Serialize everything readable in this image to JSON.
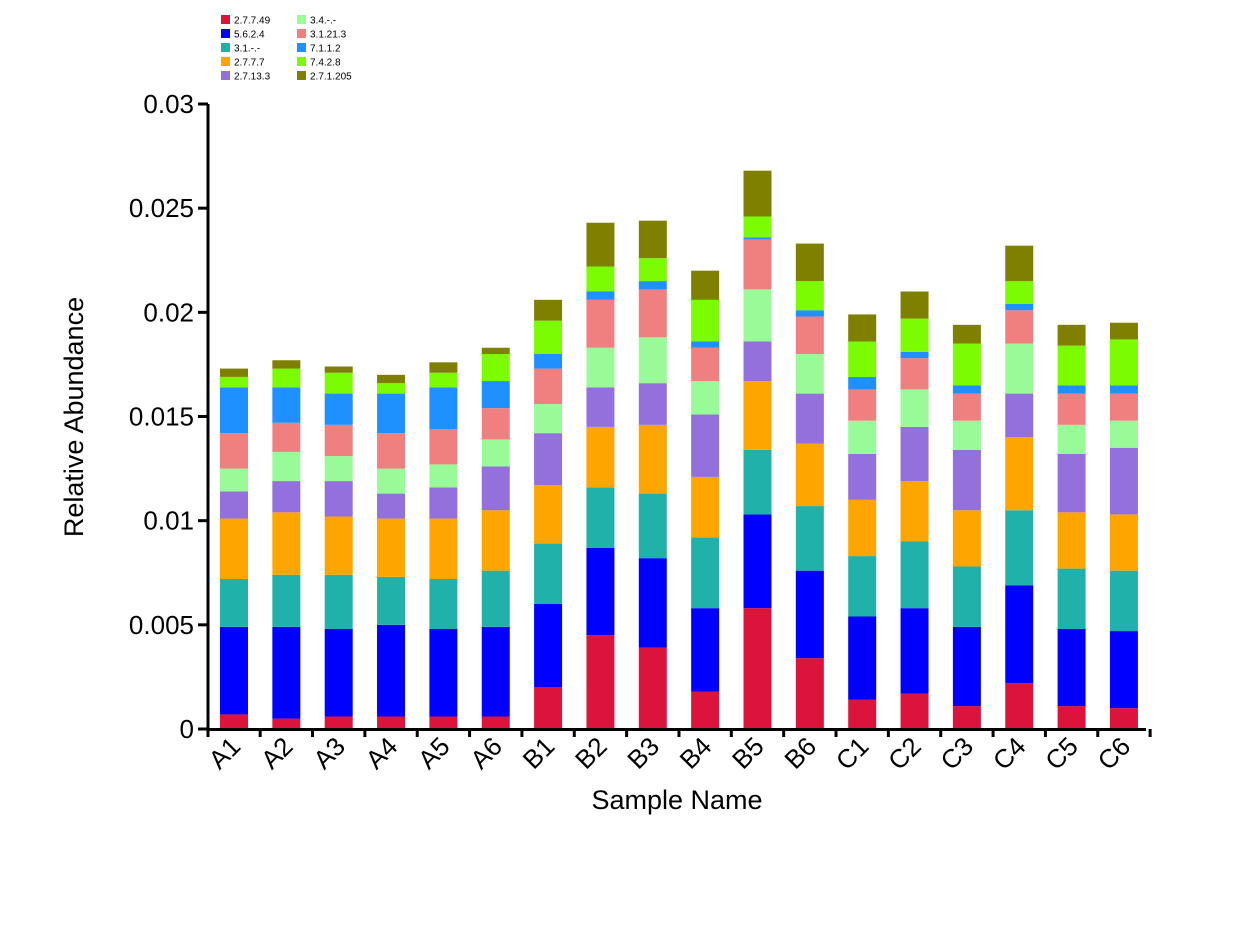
{
  "chart_data": {
    "type": "bar",
    "stacked": true,
    "xlabel": "Sample Name",
    "ylabel": "Relative Abundance",
    "ylim": [
      0,
      0.03
    ],
    "yticks": [
      "0",
      "0.005",
      "0.01",
      "0.015",
      "0.02",
      "0.025",
      "0.03"
    ],
    "grid": false,
    "legend_position": "top-left",
    "categories": [
      "A1",
      "A2",
      "A3",
      "A4",
      "A5",
      "A6",
      "B1",
      "B2",
      "B3",
      "B4",
      "B5",
      "B6",
      "C1",
      "C2",
      "C3",
      "C4",
      "C5",
      "C6"
    ],
    "series": [
      {
        "name": "2.7.7.49",
        "color": "#dc143c",
        "values": [
          0.0007,
          0.0005,
          0.0006,
          0.0006,
          0.0006,
          0.0006,
          0.002,
          0.0045,
          0.0039,
          0.0018,
          0.0058,
          0.0034,
          0.0014,
          0.0017,
          0.0011,
          0.0022,
          0.0011,
          0.001
        ]
      },
      {
        "name": "5.6.2.4",
        "color": "#0000ff",
        "values": [
          0.0042,
          0.0044,
          0.0042,
          0.0044,
          0.0042,
          0.0043,
          0.004,
          0.0042,
          0.0043,
          0.004,
          0.0045,
          0.0042,
          0.004,
          0.0041,
          0.0038,
          0.0047,
          0.0037,
          0.0037
        ]
      },
      {
        "name": "3.1.-.-",
        "color": "#20b2aa",
        "values": [
          0.0023,
          0.0025,
          0.0026,
          0.0023,
          0.0024,
          0.0027,
          0.0029,
          0.0029,
          0.0031,
          0.0034,
          0.0031,
          0.0031,
          0.0029,
          0.0032,
          0.0029,
          0.0036,
          0.0029,
          0.0029
        ]
      },
      {
        "name": "2.7.7.7",
        "color": "#ffa500",
        "values": [
          0.0029,
          0.003,
          0.0028,
          0.0028,
          0.0029,
          0.0029,
          0.0028,
          0.0029,
          0.0033,
          0.0029,
          0.0033,
          0.003,
          0.0027,
          0.0029,
          0.0027,
          0.0035,
          0.0027,
          0.0027
        ]
      },
      {
        "name": "2.7.13.3",
        "color": "#9370db",
        "values": [
          0.0013,
          0.0015,
          0.0017,
          0.0012,
          0.0015,
          0.0021,
          0.0025,
          0.0019,
          0.002,
          0.003,
          0.0019,
          0.0024,
          0.0022,
          0.0026,
          0.0029,
          0.0021,
          0.0028,
          0.0032
        ]
      },
      {
        "name": "3.4.-.-",
        "color": "#98fb98",
        "values": [
          0.0011,
          0.0014,
          0.0012,
          0.0012,
          0.0011,
          0.0013,
          0.0014,
          0.0019,
          0.0022,
          0.0016,
          0.0025,
          0.0019,
          0.0016,
          0.0018,
          0.0014,
          0.0024,
          0.0014,
          0.0013
        ]
      },
      {
        "name": "3.1.21.3",
        "color": "#f08080",
        "values": [
          0.0017,
          0.0014,
          0.0015,
          0.0017,
          0.0017,
          0.0015,
          0.0017,
          0.0023,
          0.0023,
          0.0016,
          0.0024,
          0.0018,
          0.0015,
          0.0015,
          0.0013,
          0.0016,
          0.0015,
          0.0013
        ]
      },
      {
        "name": "7.1.1.2",
        "color": "#1e90ff",
        "values": [
          0.0022,
          0.0017,
          0.0015,
          0.0019,
          0.002,
          0.0013,
          0.0007,
          0.0004,
          0.0004,
          0.0003,
          0.0001,
          0.0003,
          0.0006,
          0.0003,
          0.0004,
          0.0003,
          0.0004,
          0.0004
        ]
      },
      {
        "name": "7.4.2.8",
        "color": "#7cfc00",
        "values": [
          0.0005,
          0.0009,
          0.001,
          0.0005,
          0.0007,
          0.0013,
          0.0016,
          0.0012,
          0.0011,
          0.002,
          0.001,
          0.0014,
          0.0017,
          0.0016,
          0.002,
          0.0011,
          0.0019,
          0.0022
        ]
      },
      {
        "name": "2.7.1.205",
        "color": "#808000",
        "values": [
          0.0004,
          0.0004,
          0.0003,
          0.0004,
          0.0005,
          0.0003,
          0.001,
          0.0021,
          0.0018,
          0.0014,
          0.0022,
          0.0018,
          0.0013,
          0.0013,
          0.0009,
          0.0017,
          0.001,
          0.0008
        ]
      }
    ]
  }
}
